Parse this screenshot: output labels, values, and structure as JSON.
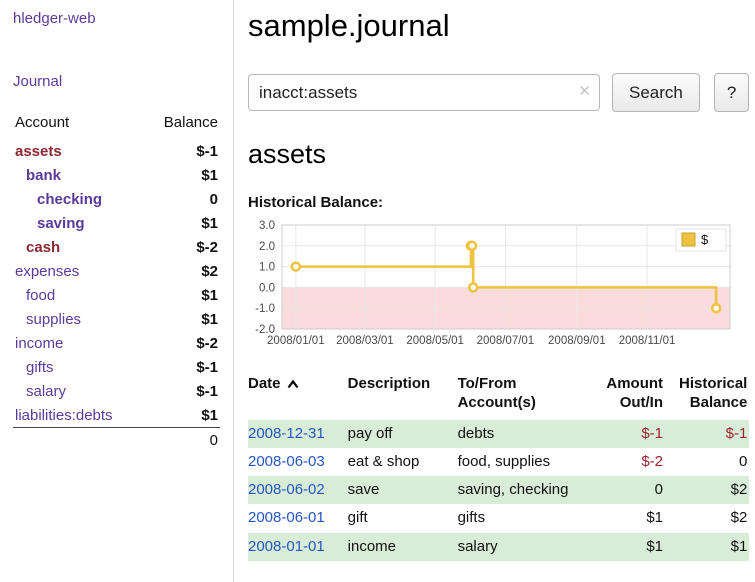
{
  "app": {
    "title": "hledger-web"
  },
  "colors": {
    "accent_purple": "#5b3a9b",
    "negative_dark_red": "#8d2731",
    "negative_light_red": "#b9747b",
    "link_blue": "#2457c5",
    "row_stripe_green": "#d8ecd8",
    "chart_series_yellow": "#edc240",
    "chart_negative_fill": "#fadcdc"
  },
  "sidebar": {
    "journal_link": "Journal",
    "table": {
      "account_header": "Account",
      "balance_header": "Balance",
      "rows": [
        {
          "name": "assets",
          "indent": 0,
          "bold": true,
          "name_color": "neg",
          "balance": "$-1",
          "balance_color": "neg"
        },
        {
          "name": "bank",
          "indent": 1,
          "bold": true,
          "name_color": "purple",
          "balance": "$1",
          "balance_color": ""
        },
        {
          "name": "checking",
          "indent": 2,
          "bold": true,
          "name_color": "purple",
          "balance": "0",
          "balance_color": ""
        },
        {
          "name": "saving",
          "indent": 2,
          "bold": true,
          "name_color": "purple",
          "balance": "$1",
          "balance_color": ""
        },
        {
          "name": "cash",
          "indent": 1,
          "bold": true,
          "name_color": "neg",
          "balance": "$-2",
          "balance_color": "neg"
        },
        {
          "name": "expenses",
          "indent": 0,
          "bold": false,
          "name_color": "purple",
          "balance": "$2",
          "balance_color": ""
        },
        {
          "name": "food",
          "indent": 1,
          "bold": false,
          "name_color": "purple",
          "balance": "$1",
          "balance_color": ""
        },
        {
          "name": "supplies",
          "indent": 1,
          "bold": false,
          "name_color": "purple",
          "balance": "$1",
          "balance_color": ""
        },
        {
          "name": "income",
          "indent": 0,
          "bold": false,
          "name_color": "purple",
          "balance": "$-2",
          "balance_color": "neglight"
        },
        {
          "name": "gifts",
          "indent": 1,
          "bold": false,
          "name_color": "purple",
          "balance": "$-1",
          "balance_color": "neglight"
        },
        {
          "name": "salary",
          "indent": 1,
          "bold": false,
          "name_color": "purple",
          "balance": "$-1",
          "balance_color": "neglight"
        },
        {
          "name": "liabilities:debts",
          "indent": 0,
          "bold": false,
          "name_color": "purple",
          "balance": "$1",
          "balance_color": ""
        }
      ],
      "total": "0"
    }
  },
  "header": {
    "title": "sample.journal"
  },
  "search": {
    "value": "inacct:assets",
    "clear_icon": "✕",
    "button_label": "Search",
    "help_label": "?"
  },
  "main": {
    "heading": "assets",
    "chart_label": "Historical Balance:"
  },
  "chart_data": {
    "type": "line",
    "step": true,
    "title": "Historical Balance",
    "legend_label": "$",
    "legend_position": "top-right",
    "x_ticks": [
      "2008/01/01",
      "2008/03/01",
      "2008/05/01",
      "2008/07/01",
      "2008/09/01",
      "2008/11/01"
    ],
    "x_tick_days": [
      0,
      60,
      121,
      182,
      244,
      305
    ],
    "x_range_days": [
      -12,
      377
    ],
    "y_ticks": [
      3,
      2,
      1,
      0,
      -1,
      -2
    ],
    "y_range": [
      -2,
      3
    ],
    "series": [
      {
        "name": "$",
        "color": "#edc240",
        "points": [
          {
            "date": "2008-01-01",
            "day": 0,
            "value": 1
          },
          {
            "date": "2008-06-01",
            "day": 152,
            "value": 2
          },
          {
            "date": "2008-06-02",
            "day": 153,
            "value": 2
          },
          {
            "date": "2008-06-03",
            "day": 154,
            "value": 0
          },
          {
            "date": "2008-12-31",
            "day": 365,
            "value": -1
          }
        ]
      }
    ],
    "colors": {
      "negative_fill": "#fadcdc",
      "grid": "#e7e7e7",
      "border": "#cccccc"
    }
  },
  "transactions": {
    "headers": {
      "date": "Date",
      "description": "Description",
      "account": "To/From Account(s)",
      "amount": "Amount Out/In",
      "balance": "Historical Balance"
    },
    "rows": [
      {
        "date": "2008-12-31",
        "description": "pay off",
        "accounts": "debts",
        "amount": "$-1",
        "amount_color": "neg",
        "balance": "$-1",
        "balance_color": "neg",
        "striped": true
      },
      {
        "date": "2008-06-03",
        "description": "eat & shop",
        "accounts": "food, supplies",
        "amount": "$-2",
        "amount_color": "neg",
        "balance": "0",
        "balance_color": "",
        "striped": false
      },
      {
        "date": "2008-06-02",
        "description": "save",
        "accounts": "saving, checking",
        "amount": "0",
        "amount_color": "",
        "balance": "$2",
        "balance_color": "",
        "striped": true
      },
      {
        "date": "2008-06-01",
        "description": "gift",
        "accounts": "gifts",
        "amount": "$1",
        "amount_color": "",
        "balance": "$2",
        "balance_color": "",
        "striped": false
      },
      {
        "date": "2008-01-01",
        "description": "income",
        "accounts": "salary",
        "amount": "$1",
        "amount_color": "",
        "balance": "$1",
        "balance_color": "",
        "striped": true
      }
    ]
  }
}
